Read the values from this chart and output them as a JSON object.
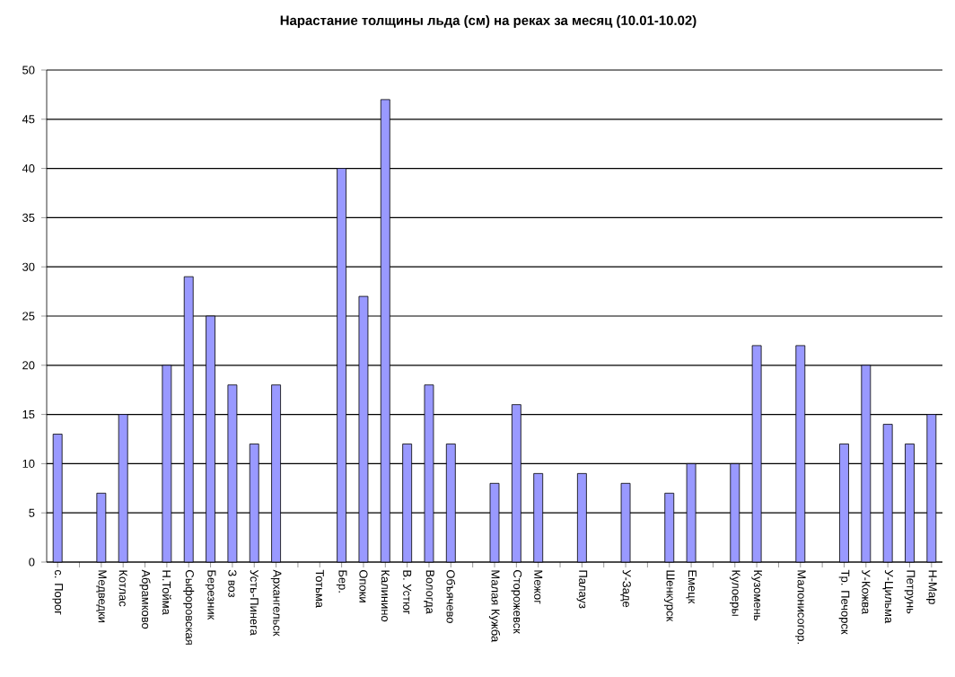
{
  "chart_data": {
    "type": "bar",
    "title": "Нарастание толщины льда (см) на реках за месяц (10.01-10.02)",
    "categories": [
      "с. Порог",
      null,
      "Медведки",
      "Котлас",
      "Абрамково",
      "Н.Тойма",
      "Сыфоровская",
      "Березник",
      "З воз",
      "Усть-Пинега",
      "Архангельск",
      null,
      "Тотьма",
      "Бер.",
      "Опоки",
      "Калинино",
      "В. Устюг",
      "Вологда",
      "Объячево",
      null,
      "Малая Кужба",
      "Сторожевск",
      "Межог",
      null,
      "Палауз",
      null,
      "У-Заде",
      null,
      "Шенкурск",
      "Емецк",
      null,
      "Кулоеры",
      "Кузомень",
      null,
      "Малонисогор.",
      null,
      "Тр. Печорск",
      "У-Кожва",
      "У-Цильма",
      "Петрунь",
      "Н-Мар"
    ],
    "values": [
      13,
      null,
      7,
      15,
      null,
      20,
      29,
      25,
      18,
      12,
      18,
      null,
      null,
      40,
      27,
      47,
      12,
      18,
      12,
      null,
      8,
      16,
      9,
      null,
      9,
      null,
      8,
      null,
      7,
      10,
      null,
      10,
      22,
      null,
      22,
      null,
      12,
      20,
      14,
      12,
      15
    ],
    "color": "#9999ff",
    "ylim": [
      0,
      50
    ],
    "yticks": [
      0,
      5,
      10,
      15,
      20,
      25,
      30,
      35,
      40,
      45,
      50
    ],
    "grid": "y"
  }
}
